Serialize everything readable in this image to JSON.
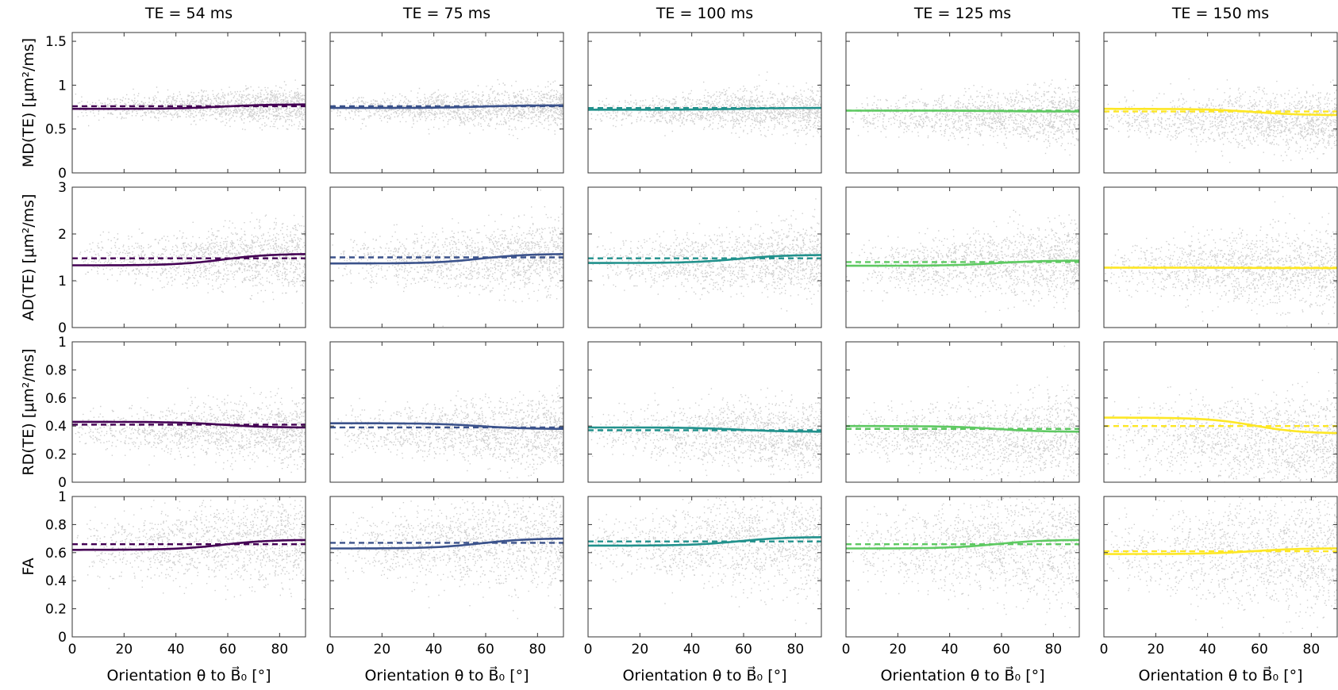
{
  "figure": {
    "column_titles": [
      "TE = 54 ms",
      "TE = 75 ms",
      "TE = 100 ms",
      "TE = 125 ms",
      "TE = 150 ms"
    ],
    "row_titles": [
      "MD(TE)  [μm²/ms]",
      "AD(TE)  [μm²/ms]",
      "RD(TE)  [μm²/ms]",
      "FA"
    ],
    "x_title": "Orientation θ to B⃗₀ [°]"
  },
  "chart_data": {
    "type": "scatter",
    "description_note": "5x4 grid of scatter plots with solid and dashed model fit lines",
    "x": {
      "range": [
        0,
        90
      ],
      "ticks": [
        0,
        20,
        40,
        60,
        80
      ],
      "label": "Orientation θ to B⃗₀ [°]"
    },
    "columns": [
      {
        "title": "TE = 54 ms",
        "color": "#440154"
      },
      {
        "title": "TE = 75 ms",
        "color": "#3b528b"
      },
      {
        "title": "TE = 100 ms",
        "color": "#21918c"
      },
      {
        "title": "TE = 125 ms",
        "color": "#5ec962"
      },
      {
        "title": "TE = 150 ms",
        "color": "#fde725"
      }
    ],
    "rows": [
      {
        "ylabel": "MD(TE)  [μm²/ms]",
        "ylim": [
          0,
          1.6
        ],
        "yticks": [
          0,
          0.5,
          1,
          1.5
        ],
        "solid_start": [
          0.73,
          0.74,
          0.72,
          0.71,
          0.73
        ],
        "solid_end": [
          0.78,
          0.77,
          0.74,
          0.7,
          0.66
        ],
        "dashed": [
          0.76,
          0.76,
          0.74,
          0.71,
          0.7
        ],
        "cloud_center": [
          0.75,
          0.74,
          0.71,
          0.66,
          0.62
        ],
        "cloud_spread": [
          0.08,
          0.09,
          0.1,
          0.12,
          0.14
        ]
      },
      {
        "ylabel": "AD(TE)  [μm²/ms]",
        "ylim": [
          0,
          3
        ],
        "yticks": [
          0,
          1,
          2,
          3
        ],
        "solid_start": [
          1.33,
          1.37,
          1.38,
          1.32,
          1.28
        ],
        "solid_end": [
          1.57,
          1.57,
          1.55,
          1.43,
          1.27
        ],
        "dashed": [
          1.48,
          1.5,
          1.48,
          1.4,
          1.28
        ],
        "cloud_center": [
          1.45,
          1.45,
          1.42,
          1.35,
          1.28
        ],
        "cloud_spread": [
          0.28,
          0.3,
          0.3,
          0.32,
          0.35
        ]
      },
      {
        "ylabel": "RD(TE)  [μm²/ms]",
        "ylim": [
          0,
          1
        ],
        "yticks": [
          0,
          0.2,
          0.4,
          0.6,
          0.8,
          1
        ],
        "solid_start": [
          0.43,
          0.42,
          0.39,
          0.4,
          0.46
        ],
        "solid_end": [
          0.39,
          0.38,
          0.36,
          0.36,
          0.35
        ],
        "dashed": [
          0.41,
          0.39,
          0.37,
          0.38,
          0.4
        ],
        "cloud_center": [
          0.38,
          0.37,
          0.35,
          0.34,
          0.33
        ],
        "cloud_spread": [
          0.09,
          0.1,
          0.1,
          0.12,
          0.14
        ]
      },
      {
        "ylabel": "FA",
        "ylim": [
          0,
          1
        ],
        "yticks": [
          0,
          0.2,
          0.4,
          0.6,
          0.8,
          1
        ],
        "solid_start": [
          0.62,
          0.63,
          0.65,
          0.63,
          0.59
        ],
        "solid_end": [
          0.69,
          0.7,
          0.71,
          0.69,
          0.63
        ],
        "dashed": [
          0.66,
          0.67,
          0.68,
          0.66,
          0.61
        ],
        "cloud_center": [
          0.66,
          0.66,
          0.66,
          0.64,
          0.6
        ],
        "cloud_spread": [
          0.13,
          0.14,
          0.15,
          0.16,
          0.18
        ]
      }
    ],
    "legend": "none",
    "grid": false
  }
}
